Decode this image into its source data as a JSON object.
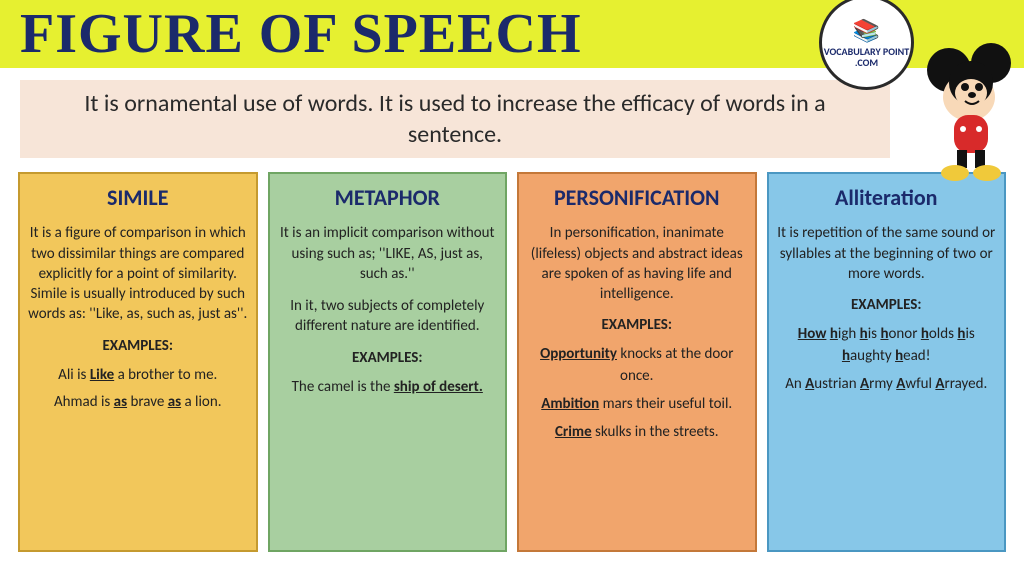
{
  "title": "FIGURE OF SPEECH",
  "title_color": "#1b2a6b",
  "title_bg": "#e6f030",
  "logo": {
    "icon": "📚",
    "text": "VOCABULARY POINT .COM"
  },
  "subtitle": "It is ornamental use of words. It is used to increase the efficacy of words in a sentence.",
  "subtitle_bg": "#f7e5d8",
  "cards": [
    {
      "title": "SIMILE",
      "bg": "#f2c75b",
      "border": "#c59a2f",
      "desc": "It is a figure of comparison in which two dissimilar things are compared explicitly for a point of similarity. Simile is usually introduced by such words as: ''Like, as, such as, just as''.",
      "desc2": "",
      "examples_label": "EXAMPLES:",
      "examples": [
        "Ali is <span class='b u'>Like</span> a brother to me.",
        "Ahmad is <span class='b u'>as</span> brave <span class='b u'>as</span> a lion."
      ]
    },
    {
      "title": "METAPHOR",
      "bg": "#a8cfa0",
      "border": "#6fa563",
      "desc": "It is an implicit comparison without using such as; ''LIKE, AS, just as, such as.''",
      "desc2": "In it, two subjects of completely different nature are identified.",
      "examples_label": "EXAMPLES:",
      "examples": [
        "The camel is the <span class='b u'>ship of desert.</span>"
      ]
    },
    {
      "title": "PERSONIFICATION",
      "bg": "#f1a56c",
      "border": "#c47839",
      "desc": "In personification, inanimate (lifeless) objects and abstract ideas are spoken of as having life and intelligence.",
      "desc2": "",
      "examples_label": "EXAMPLES:",
      "examples": [
        "<span class='b u'>Opportunity</span> knocks at the door once.",
        "<span class='b u'>Ambition</span> mars their useful toil.",
        "<span class='b u'>Crime</span> skulks in the streets."
      ]
    },
    {
      "title": "Alliteration",
      "bg": "#87c7e8",
      "border": "#4a97c2",
      "desc": "It is repetition of the same sound or syllables at the beginning of two or more words.",
      "desc2": "",
      "examples_label": "EXAMPLES:",
      "examples": [
        "<span class='b u'>How</span> <span class='b u'>h</span>igh <span class='b u'>h</span>is <span class='b u'>h</span>onor <span class='b u'>h</span>olds <span class='b u'>h</span>is <span class='b u'>h</span>aughty <span class='b u'>h</span>ead!",
        "An <span class='b u'>A</span>ustrian <span class='b u'>A</span>rmy <span class='b u'>A</span>wful <span class='b u'>A</span>rrayed."
      ]
    }
  ]
}
